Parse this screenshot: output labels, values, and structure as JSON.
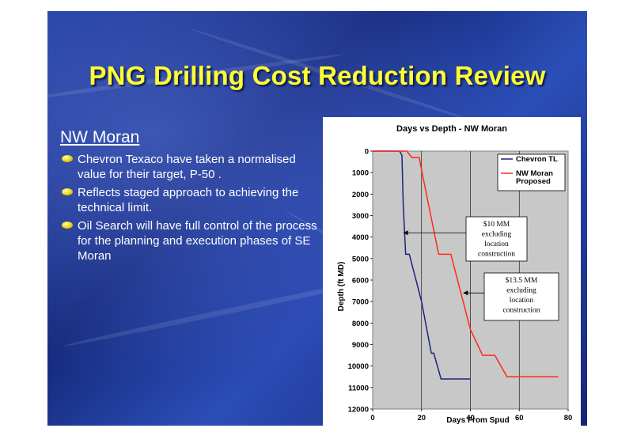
{
  "slide": {
    "title": "PNG Drilling Cost Reduction Review",
    "section_heading": "NW Moran",
    "bullets": [
      "Chevron Texaco have taken a normalised value for their target, P-50 .",
      "Reflects staged approach to achieving the technical limit.",
      "Oil Search will have full control of the process for the planning and execution phases of SE Moran"
    ]
  },
  "chart_data": {
    "type": "line",
    "title": "Days vs Depth - NW Moran",
    "xlabel": "Days From Spud",
    "ylabel": "Depth  (ft MD)",
    "xlim": [
      0,
      80
    ],
    "ylim": [
      0,
      12000
    ],
    "y_inverted": true,
    "x_ticks": [
      0,
      20,
      40,
      60,
      80
    ],
    "y_ticks": [
      0,
      1000,
      2000,
      3000,
      4000,
      5000,
      6000,
      7000,
      8000,
      9000,
      10000,
      11000,
      12000
    ],
    "grid": true,
    "legend_position": "top-right",
    "series": [
      {
        "name": "Chevron TL",
        "color": "#1a237e",
        "points": [
          [
            0,
            0
          ],
          [
            11,
            0
          ],
          [
            12,
            200
          ],
          [
            12.5,
            2500
          ],
          [
            13.5,
            4800
          ],
          [
            15,
            4800
          ],
          [
            20,
            7000
          ],
          [
            24,
            9400
          ],
          [
            25,
            9400
          ],
          [
            28,
            10600
          ],
          [
            40,
            10600
          ]
        ]
      },
      {
        "name": "NW Moran Proposed",
        "color": "#ff2a1a",
        "points": [
          [
            0,
            0
          ],
          [
            14,
            0
          ],
          [
            16,
            300
          ],
          [
            19,
            300
          ],
          [
            22,
            2000
          ],
          [
            27,
            4800
          ],
          [
            32,
            4800
          ],
          [
            40,
            8300
          ],
          [
            45,
            9500
          ],
          [
            50,
            9500
          ],
          [
            55,
            10500
          ],
          [
            76,
            10500
          ]
        ]
      }
    ],
    "annotations": [
      {
        "lines": [
          "$10 MM",
          "excluding",
          "location",
          "construction"
        ],
        "arrow_to": [
          12.5,
          3800
        ]
      },
      {
        "lines": [
          "$13.5 MM",
          "excluding",
          "location",
          "construction"
        ],
        "arrow_to": [
          37,
          6600
        ]
      }
    ]
  }
}
